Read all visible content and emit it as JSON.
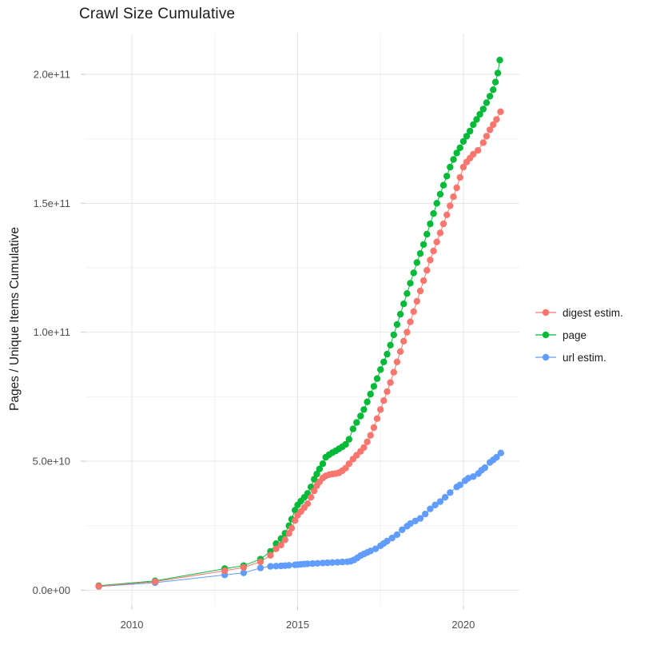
{
  "chart_data": {
    "type": "scatter",
    "title": "Crawl Size Cumulative",
    "xlabel": "",
    "ylabel": "Pages / Unique Items Cumulative",
    "value_unit_note": "y values stored in billions (1e9)",
    "x_domain": [
      2008.6,
      2021.69
    ],
    "y_domain_e9": [
      -6.1,
      215.8
    ],
    "grid": true,
    "legend_position": "right",
    "x_ticks": [
      {
        "value": 2010,
        "label": "2010"
      },
      {
        "value": 2015,
        "label": "2015"
      },
      {
        "value": 2020,
        "label": "2020"
      }
    ],
    "x_minor_ticks": [
      2012.5,
      2017.5
    ],
    "y_ticks": [
      {
        "value_e9": 0,
        "label": "0.0e+00"
      },
      {
        "value_e9": 50,
        "label": "5.0e+10"
      },
      {
        "value_e9": 100,
        "label": "1.0e+11"
      },
      {
        "value_e9": 150,
        "label": "1.5e+11"
      },
      {
        "value_e9": 200,
        "label": "2.0e+11"
      }
    ],
    "y_minor_ticks_e9": [
      25,
      75,
      125,
      175
    ],
    "colors": {
      "digest": "#F8766D",
      "page": "#00BA38",
      "url": "#619CFF",
      "grid_major": "#e5e5e5",
      "grid_minor": "#f2f2f2",
      "tick_mark": "#c9c9c9",
      "tick_label": "#4d4d4d",
      "title_text": "#1a1a1a"
    },
    "series": [
      {
        "name": "digest estim.",
        "color": "#F8766D",
        "points": [
          [
            2009.0,
            1.5
          ],
          [
            2010.7,
            3.3
          ],
          [
            2012.8,
            7.5
          ],
          [
            2013.37,
            8.8
          ],
          [
            2013.88,
            11
          ],
          [
            2014.18,
            13.5
          ],
          [
            2014.35,
            16
          ],
          [
            2014.5,
            17.5
          ],
          [
            2014.62,
            19.5
          ],
          [
            2014.74,
            22
          ],
          [
            2014.82,
            24
          ],
          [
            2014.92,
            27
          ],
          [
            2015.0,
            29
          ],
          [
            2015.1,
            30.5
          ],
          [
            2015.2,
            32
          ],
          [
            2015.3,
            33.5
          ],
          [
            2015.4,
            36
          ],
          [
            2015.5,
            38.5
          ],
          [
            2015.58,
            40.5
          ],
          [
            2015.66,
            42
          ],
          [
            2015.76,
            43.5
          ],
          [
            2015.85,
            44.3
          ],
          [
            2015.95,
            44.8
          ],
          [
            2016.05,
            45
          ],
          [
            2016.15,
            45.2
          ],
          [
            2016.25,
            45.5
          ],
          [
            2016.35,
            46.3
          ],
          [
            2016.45,
            47.3
          ],
          [
            2016.55,
            49
          ],
          [
            2016.67,
            50.8
          ],
          [
            2016.78,
            52.3
          ],
          [
            2016.9,
            53.8
          ],
          [
            2017.0,
            55.3
          ],
          [
            2017.1,
            57.5
          ],
          [
            2017.2,
            60
          ],
          [
            2017.3,
            63
          ],
          [
            2017.4,
            66.5
          ],
          [
            2017.5,
            70
          ],
          [
            2017.6,
            73.5
          ],
          [
            2017.7,
            77
          ],
          [
            2017.8,
            80.5
          ],
          [
            2017.9,
            84.5
          ],
          [
            2018.0,
            88.5
          ],
          [
            2018.1,
            92.5
          ],
          [
            2018.2,
            96.5
          ],
          [
            2018.3,
            100
          ],
          [
            2018.4,
            104
          ],
          [
            2018.5,
            108
          ],
          [
            2018.6,
            112
          ],
          [
            2018.7,
            116
          ],
          [
            2018.8,
            120
          ],
          [
            2018.9,
            124
          ],
          [
            2019.0,
            128
          ],
          [
            2019.1,
            131.5
          ],
          [
            2019.2,
            135
          ],
          [
            2019.3,
            138.5
          ],
          [
            2019.4,
            142
          ],
          [
            2019.5,
            145.5
          ],
          [
            2019.6,
            149
          ],
          [
            2019.7,
            152.5
          ],
          [
            2019.8,
            156
          ],
          [
            2019.9,
            160
          ],
          [
            2020.0,
            164
          ],
          [
            2020.1,
            166
          ],
          [
            2020.2,
            167.5
          ],
          [
            2020.3,
            169
          ],
          [
            2020.44,
            170.5
          ],
          [
            2020.6,
            173.5
          ],
          [
            2020.7,
            176
          ],
          [
            2020.8,
            178.5
          ],
          [
            2020.9,
            180.5
          ],
          [
            2021.0,
            182.5
          ],
          [
            2021.12,
            185.5
          ]
        ]
      },
      {
        "name": "page",
        "color": "#00BA38",
        "points": [
          [
            2009.0,
            1.7
          ],
          [
            2010.7,
            3.6
          ],
          [
            2012.8,
            8.3
          ],
          [
            2013.37,
            9.5
          ],
          [
            2013.88,
            12
          ],
          [
            2014.18,
            15
          ],
          [
            2014.35,
            18
          ],
          [
            2014.5,
            20
          ],
          [
            2014.62,
            22
          ],
          [
            2014.74,
            25
          ],
          [
            2014.82,
            27.5
          ],
          [
            2014.92,
            31
          ],
          [
            2015.0,
            33
          ],
          [
            2015.1,
            34.5
          ],
          [
            2015.2,
            36
          ],
          [
            2015.3,
            37.5
          ],
          [
            2015.4,
            40
          ],
          [
            2015.5,
            43
          ],
          [
            2015.58,
            45
          ],
          [
            2015.66,
            47
          ],
          [
            2015.76,
            49
          ],
          [
            2015.85,
            51.5
          ],
          [
            2015.95,
            52.5
          ],
          [
            2016.05,
            53.3
          ],
          [
            2016.15,
            54
          ],
          [
            2016.25,
            54.8
          ],
          [
            2016.35,
            55.6
          ],
          [
            2016.45,
            56.5
          ],
          [
            2016.55,
            58.5
          ],
          [
            2016.67,
            62.5
          ],
          [
            2016.78,
            65
          ],
          [
            2016.9,
            67.5
          ],
          [
            2017.0,
            70
          ],
          [
            2017.1,
            73
          ],
          [
            2017.2,
            76
          ],
          [
            2017.3,
            79
          ],
          [
            2017.4,
            82
          ],
          [
            2017.5,
            85.5
          ],
          [
            2017.6,
            88.5
          ],
          [
            2017.7,
            91.5
          ],
          [
            2017.8,
            95
          ],
          [
            2017.9,
            99
          ],
          [
            2018.0,
            103
          ],
          [
            2018.1,
            107
          ],
          [
            2018.2,
            111
          ],
          [
            2018.3,
            115
          ],
          [
            2018.4,
            119
          ],
          [
            2018.5,
            123
          ],
          [
            2018.6,
            127
          ],
          [
            2018.7,
            130.5
          ],
          [
            2018.8,
            134
          ],
          [
            2018.9,
            138
          ],
          [
            2019.0,
            142
          ],
          [
            2019.1,
            146
          ],
          [
            2019.2,
            150
          ],
          [
            2019.3,
            153.5
          ],
          [
            2019.4,
            157
          ],
          [
            2019.5,
            160.5
          ],
          [
            2019.6,
            164
          ],
          [
            2019.7,
            167
          ],
          [
            2019.8,
            169.5
          ],
          [
            2019.9,
            171.5
          ],
          [
            2020.0,
            174
          ],
          [
            2020.1,
            176
          ],
          [
            2020.2,
            178
          ],
          [
            2020.3,
            180.5
          ],
          [
            2020.4,
            182.5
          ],
          [
            2020.5,
            184.5
          ],
          [
            2020.6,
            186.5
          ],
          [
            2020.7,
            189
          ],
          [
            2020.8,
            191.5
          ],
          [
            2020.9,
            194
          ],
          [
            2020.97,
            197
          ],
          [
            2021.04,
            200.5
          ],
          [
            2021.1,
            205.5
          ]
        ]
      },
      {
        "name": "url estim.",
        "color": "#619CFF",
        "points": [
          [
            2009.0,
            1.4
          ],
          [
            2010.7,
            2.9
          ],
          [
            2012.8,
            5.9
          ],
          [
            2013.37,
            6.7
          ],
          [
            2013.88,
            8.6
          ],
          [
            2014.18,
            9.2
          ],
          [
            2014.35,
            9.3
          ],
          [
            2014.5,
            9.4
          ],
          [
            2014.62,
            9.5
          ],
          [
            2014.74,
            9.6
          ],
          [
            2014.92,
            9.8
          ],
          [
            2015.0,
            9.9
          ],
          [
            2015.1,
            10.0
          ],
          [
            2015.2,
            10.1
          ],
          [
            2015.3,
            10.2
          ],
          [
            2015.45,
            10.3
          ],
          [
            2015.6,
            10.4
          ],
          [
            2015.76,
            10.5
          ],
          [
            2015.9,
            10.6
          ],
          [
            2016.05,
            10.7
          ],
          [
            2016.2,
            10.8
          ],
          [
            2016.35,
            10.9
          ],
          [
            2016.5,
            11.0
          ],
          [
            2016.6,
            11.2
          ],
          [
            2016.7,
            11.7
          ],
          [
            2016.8,
            12.5
          ],
          [
            2016.9,
            13.4
          ],
          [
            2017.0,
            14.0
          ],
          [
            2017.1,
            14.6
          ],
          [
            2017.2,
            15.2
          ],
          [
            2017.35,
            16.0
          ],
          [
            2017.5,
            17.2
          ],
          [
            2017.6,
            18.1
          ],
          [
            2017.7,
            19.0
          ],
          [
            2017.85,
            20.2
          ],
          [
            2018.0,
            21.5
          ],
          [
            2018.15,
            23.4
          ],
          [
            2018.3,
            24.8
          ],
          [
            2018.4,
            25.8
          ],
          [
            2018.55,
            26.8
          ],
          [
            2018.7,
            27.8
          ],
          [
            2018.85,
            29.5
          ],
          [
            2019.0,
            31.5
          ],
          [
            2019.15,
            33.0
          ],
          [
            2019.3,
            34.3
          ],
          [
            2019.45,
            36.0
          ],
          [
            2019.6,
            37.8
          ],
          [
            2019.8,
            40.0
          ],
          [
            2019.9,
            40.8
          ],
          [
            2020.05,
            42.4
          ],
          [
            2020.15,
            43.4
          ],
          [
            2020.3,
            44.0
          ],
          [
            2020.45,
            45.2
          ],
          [
            2020.55,
            46.5
          ],
          [
            2020.65,
            47.5
          ],
          [
            2020.8,
            49.5
          ],
          [
            2020.9,
            50.5
          ],
          [
            2021.0,
            51.5
          ],
          [
            2021.13,
            53.2
          ]
        ]
      }
    ]
  }
}
